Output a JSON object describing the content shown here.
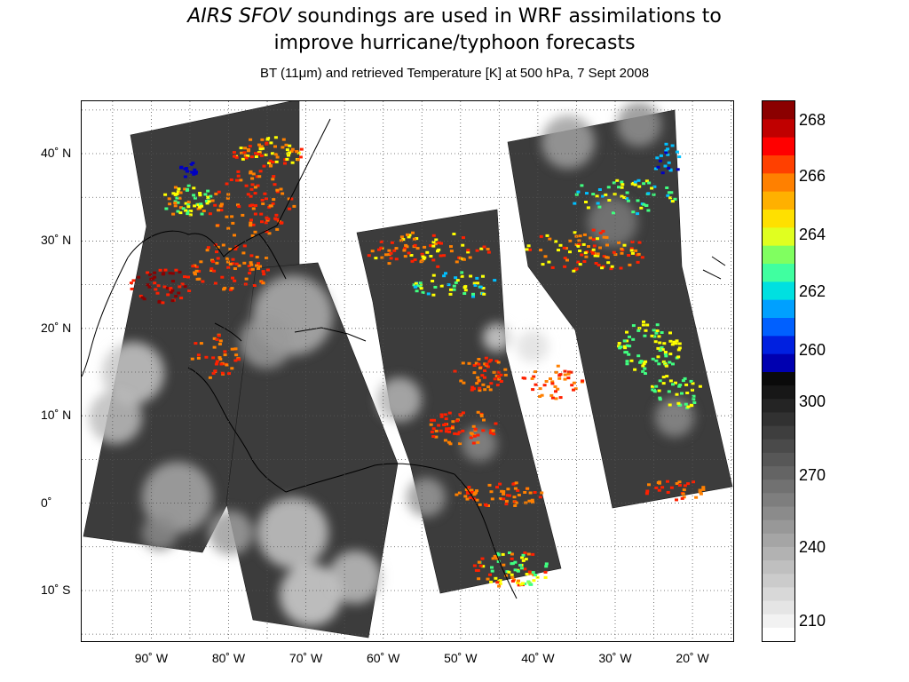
{
  "title": {
    "italic_part": "AIRS SFOV",
    "rest_line1": "soundings are used in WRF assimilations to",
    "line2": "improve hurricane/typhoon forecasts",
    "subtitle": "BT (11μm) and retrieved Temperature [K] at 500 hPa, 7 Sept 2008"
  },
  "map": {
    "lat_labels": [
      {
        "text": "40˚ N",
        "lat": 40
      },
      {
        "text": "30˚ N",
        "lat": 30
      },
      {
        "text": "20˚ N",
        "lat": 20
      },
      {
        "text": "10˚ N",
        "lat": 10
      },
      {
        "text": "0˚",
        "lat": 0
      },
      {
        "text": "10˚ S",
        "lat": -10
      }
    ],
    "lon_labels": [
      {
        "text": "90˚ W",
        "lon": -90
      },
      {
        "text": "80˚ W",
        "lon": -80
      },
      {
        "text": "70˚ W",
        "lon": -70
      },
      {
        "text": "60˚ W",
        "lon": -60
      },
      {
        "text": "50˚ W",
        "lon": -50
      },
      {
        "text": "40˚ W",
        "lon": -40
      },
      {
        "text": "30˚ W",
        "lon": -30
      },
      {
        "text": "20˚ W",
        "lon": -20
      }
    ],
    "extent": {
      "lon_min": -99,
      "lon_max": -14.5,
      "lat_max": 46,
      "lat_min": -16
    }
  },
  "colorbar": {
    "temperature_ticks": [
      "268",
      "266",
      "264",
      "262",
      "260"
    ],
    "bt_ticks": [
      "300",
      "270",
      "240",
      "210"
    ],
    "colors": {
      "dark_red": "#8b0000",
      "red": "#ff2000",
      "orange": "#ff8000",
      "yellow": "#ffff00",
      "green": "#40ff80",
      "cyan": "#00c0ff",
      "blue": "#0000c0",
      "black": "#000000",
      "gray": "#808080",
      "white": "#ffffff"
    }
  }
}
